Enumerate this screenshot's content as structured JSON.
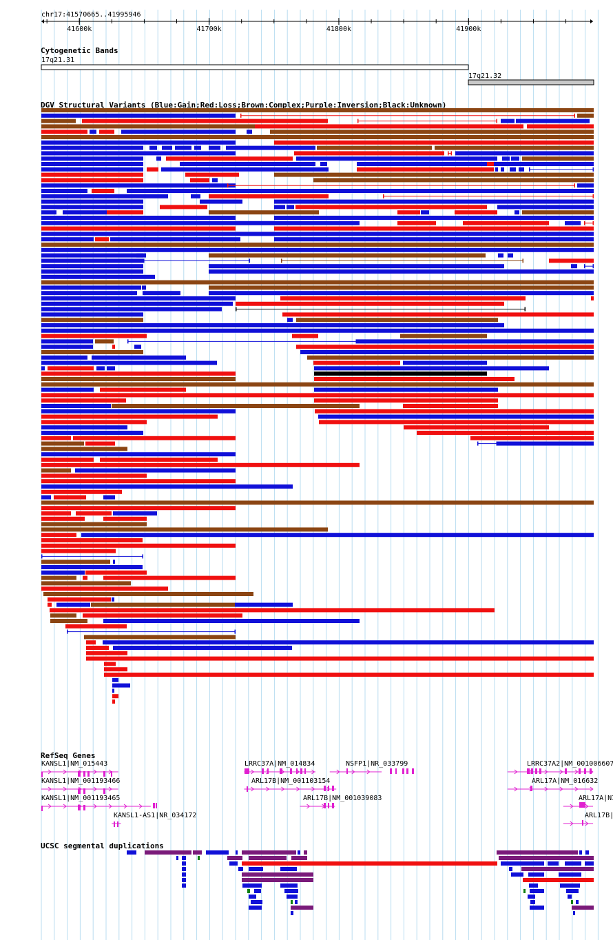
{
  "position": "chr17:41570665..41995946",
  "ruler": {
    "start": 41570665,
    "end": 41995946,
    "ticks": [
      {
        "pos": 41600000,
        "label": "41600k"
      },
      {
        "pos": 41700000,
        "label": "41700k"
      },
      {
        "pos": 41800000,
        "label": "41800k"
      },
      {
        "pos": 41900000,
        "label": "41900k"
      }
    ]
  },
  "tracks": {
    "cytobands": {
      "title": "Cytogenetic Bands",
      "bands": [
        {
          "name": "17q21.31",
          "start": 41570665,
          "end": 41900000,
          "shade": "#ffffff"
        },
        {
          "name": "17q21.32",
          "start": 41900000,
          "end": 41995946,
          "shade": "#c8c8c8"
        }
      ]
    },
    "dgv": {
      "title": "DGV Structural Variants (Blue:Gain;Red:Loss;Brown:Complex;Purple:Inversion;Black:Unknown)",
      "colors": {
        "B": "#1010d8",
        "R": "#f01010",
        "N": "#8b4513",
        "P": "#800080",
        "K": "#000000"
      }
    },
    "refseq": {
      "title": "RefSeq Genes",
      "color": "#e020d0",
      "genes": [
        {
          "label": "KANSL1|NM_015443",
          "start": 41570665,
          "end": 41630000,
          "row": 0
        },
        {
          "label": "KANSL1|NM_001193466",
          "start": 41570665,
          "end": 41630000,
          "row": 1
        },
        {
          "label": "KANSL1|NM_001193465",
          "start": 41570665,
          "end": 41655000,
          "row": 2
        },
        {
          "label": "KANSL1-AS1|NR_034172",
          "start": 41625000,
          "end": 41632000,
          "row": 3
        },
        {
          "label": "LRRC37A|NM_014834",
          "start": 41727000,
          "end": 41782000,
          "row": 0
        },
        {
          "label": "NSFP1|NR_033799",
          "start": 41793000,
          "end": 41833000,
          "row": 0
        },
        {
          "label": "ARL17B|NM_001103154",
          "start": 41727000,
          "end": 41798000,
          "row": 1
        },
        {
          "label": "ARL17B|NM_001039083",
          "start": 41770000,
          "end": 41797000,
          "row": 2
        },
        {
          "label": "LRRC37A2|NM_001006607",
          "start": 41930000,
          "end": 41995946,
          "row": 0
        },
        {
          "label": "ARL17A|NM_016632",
          "start": 41930000,
          "end": 41995946,
          "row": 1
        },
        {
          "label": "ARL17A|NI",
          "start": 41973000,
          "end": 41995946,
          "row": 2
        },
        {
          "label": "ARL17B|",
          "start": 41973000,
          "end": 41995946,
          "row": 3
        }
      ]
    },
    "segdups": {
      "title": "UCSC segmental duplications"
    }
  }
}
